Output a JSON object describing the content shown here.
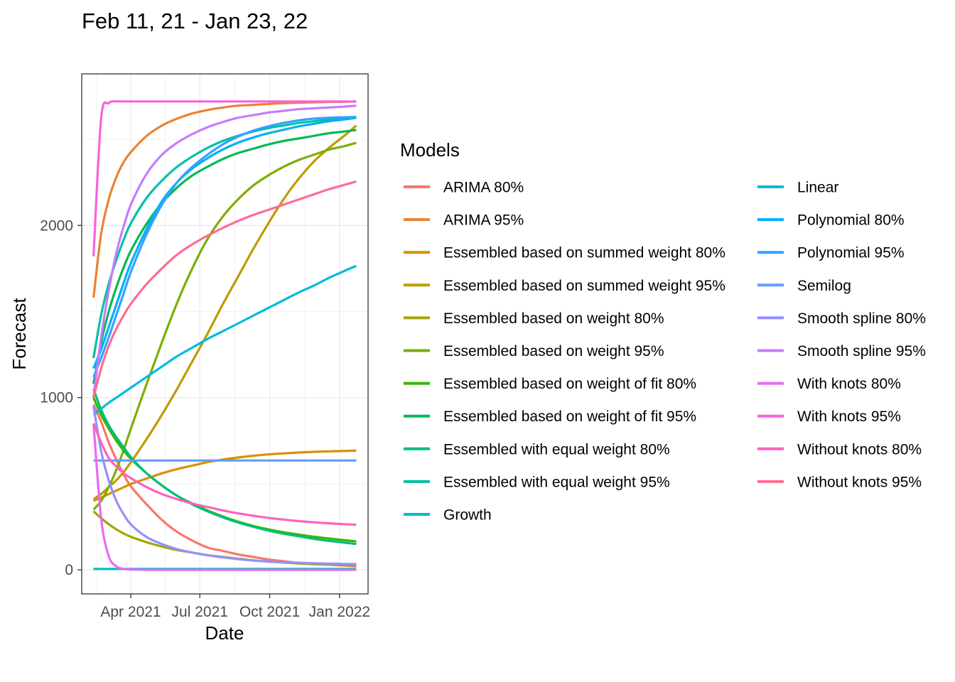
{
  "chart_data": {
    "type": "line",
    "title": "Feb 11, 21 - Jan 23, 22",
    "xlabel": "Date",
    "ylabel": "Forecast",
    "x_range": [
      "2021-02-11",
      "2022-01-23"
    ],
    "x_ticks": [
      {
        "date": "2021-04-01",
        "label": "Apr 2021"
      },
      {
        "date": "2021-07-01",
        "label": "Jul 2021"
      },
      {
        "date": "2021-10-01",
        "label": "Oct 2021"
      },
      {
        "date": "2022-01-01",
        "label": "Jan 2022"
      }
    ],
    "ylim": [
      -140,
      2880
    ],
    "y_ticks": [
      0,
      1000,
      2000
    ],
    "grid": true,
    "legend": {
      "title": "Models",
      "placement": "right"
    },
    "dates": [
      "2021-02-11",
      "2021-02-21",
      "2021-03-03",
      "2021-03-13",
      "2021-03-23",
      "2021-04-02",
      "2021-04-22",
      "2021-05-12",
      "2021-06-01",
      "2021-06-21",
      "2021-07-11",
      "2021-07-31",
      "2021-08-20",
      "2021-09-09",
      "2021-09-29",
      "2021-10-19",
      "2021-11-08",
      "2021-11-28",
      "2021-12-18",
      "2022-01-07",
      "2022-01-23"
    ],
    "series": [
      {
        "name": "ARIMA 80%",
        "color": "#F8766D",
        "values": [
          960,
          860,
          740,
          640,
          550,
          480,
          380,
          290,
          220,
          170,
          130,
          110,
          90,
          75,
          60,
          50,
          40,
          35,
          30,
          25,
          20
        ]
      },
      {
        "name": "ARIMA 95%",
        "color": "#EA8331",
        "values": [
          1580,
          1950,
          2150,
          2280,
          2370,
          2430,
          2520,
          2580,
          2620,
          2650,
          2670,
          2685,
          2695,
          2700,
          2705,
          2710,
          2713,
          2715,
          2717,
          2718,
          2720
        ]
      },
      {
        "name": "Essembled based on summed weight 80%",
        "color": "#D89000",
        "values": [
          400,
          420,
          440,
          460,
          480,
          500,
          530,
          560,
          585,
          605,
          625,
          640,
          652,
          662,
          670,
          676,
          681,
          685,
          688,
          690,
          692
        ]
      },
      {
        "name": "Essembled based on summed weight 95%",
        "color": "#C09B00",
        "values": [
          410,
          440,
          480,
          520,
          570,
          630,
          760,
          900,
          1050,
          1210,
          1370,
          1540,
          1700,
          1860,
          2010,
          2150,
          2270,
          2370,
          2450,
          2520,
          2580
        ]
      },
      {
        "name": "Essembled based on weight 80%",
        "color": "#A3A500",
        "values": [
          340,
          300,
          265,
          235,
          210,
          190,
          160,
          135,
          115,
          100,
          85,
          75,
          65,
          55,
          48,
          42,
          37,
          33,
          30,
          27,
          25
        ]
      },
      {
        "name": "Essembled based on weight 95%",
        "color": "#7CAE00",
        "values": [
          350,
          400,
          480,
          580,
          700,
          830,
          1080,
          1320,
          1550,
          1750,
          1920,
          2050,
          2150,
          2230,
          2290,
          2340,
          2380,
          2410,
          2440,
          2460,
          2480
        ]
      },
      {
        "name": "Essembled based on weight of fit 80%",
        "color": "#39B600",
        "values": [
          1000,
          900,
          820,
          750,
          690,
          640,
          560,
          490,
          430,
          385,
          345,
          310,
          280,
          255,
          235,
          218,
          205,
          192,
          182,
          172,
          165
        ]
      },
      {
        "name": "Essembled based on weight of fit 95%",
        "color": "#00BB4E",
        "values": [
          1080,
          1320,
          1500,
          1640,
          1760,
          1860,
          2010,
          2130,
          2220,
          2290,
          2340,
          2385,
          2420,
          2445,
          2470,
          2490,
          2505,
          2520,
          2535,
          2545,
          2555
        ]
      },
      {
        "name": "Essembled with equal weight 80%",
        "color": "#00BF7D",
        "values": [
          1050,
          930,
          840,
          770,
          710,
          650,
          560,
          490,
          430,
          380,
          340,
          305,
          275,
          250,
          228,
          210,
          195,
          180,
          168,
          158,
          150
        ]
      },
      {
        "name": "Essembled with equal weight 95%",
        "color": "#00C1A3",
        "values": [
          1230,
          1480,
          1660,
          1800,
          1920,
          2020,
          2160,
          2260,
          2340,
          2400,
          2450,
          2490,
          2520,
          2545,
          2565,
          2580,
          2595,
          2605,
          2615,
          2620,
          2625
        ]
      },
      {
        "name": "Growth",
        "color": "#00BFC4",
        "values": [
          5,
          5,
          5,
          5,
          5,
          5,
          5,
          5,
          5,
          5,
          5,
          5,
          5,
          5,
          5,
          5,
          5,
          5,
          5,
          5,
          5
        ]
      },
      {
        "name": "Linear",
        "color": "#00BAE0",
        "values": [
          900,
          935,
          970,
          1000,
          1030,
          1060,
          1120,
          1180,
          1240,
          1290,
          1340,
          1385,
          1430,
          1475,
          1520,
          1565,
          1610,
          1650,
          1695,
          1735,
          1765
        ]
      },
      {
        "name": "Polynomial 80%",
        "color": "#00B0F6",
        "values": [
          1170,
          1280,
          1410,
          1540,
          1670,
          1790,
          1980,
          2140,
          2250,
          2330,
          2390,
          2440,
          2480,
          2510,
          2535,
          2555,
          2575,
          2590,
          2605,
          2615,
          2625
        ]
      },
      {
        "name": "Polynomial 95%",
        "color": "#35A2FF",
        "values": [
          1120,
          1230,
          1350,
          1480,
          1610,
          1740,
          1950,
          2120,
          2250,
          2340,
          2410,
          2470,
          2515,
          2550,
          2575,
          2595,
          2610,
          2620,
          2625,
          2628,
          2630
        ]
      },
      {
        "name": "Semilog",
        "color": "#619CFF",
        "values": [
          635,
          635,
          635,
          635,
          635,
          635,
          635,
          635,
          635,
          635,
          635,
          635,
          635,
          635,
          635,
          635,
          635,
          635,
          635,
          635,
          635
        ]
      },
      {
        "name": "Smooth spline 80%",
        "color": "#9590FF",
        "values": [
          950,
          690,
          520,
          400,
          320,
          260,
          190,
          150,
          120,
          100,
          85,
          72,
          62,
          54,
          48,
          44,
          41,
          38,
          36,
          34,
          33
        ]
      },
      {
        "name": "Smooth spline 95%",
        "color": "#C77CFF",
        "values": [
          1000,
          1350,
          1620,
          1840,
          2000,
          2130,
          2300,
          2410,
          2480,
          2530,
          2570,
          2600,
          2625,
          2640,
          2655,
          2665,
          2675,
          2680,
          2685,
          2690,
          2695
        ]
      },
      {
        "name": "With knots 80%",
        "color": "#E76BF3",
        "values": [
          850,
          300,
          80,
          20,
          5,
          2,
          0,
          0,
          0,
          0,
          0,
          0,
          0,
          0,
          0,
          0,
          0,
          0,
          0,
          0,
          0
        ]
      },
      {
        "name": "With knots 95%",
        "color": "#FA62DB",
        "values": [
          1820,
          2620,
          2710,
          2720,
          2720,
          2720,
          2720,
          2720,
          2720,
          2720,
          2720,
          2720,
          2720,
          2720,
          2720,
          2720,
          2720,
          2720,
          2720,
          2720,
          2720
        ]
      },
      {
        "name": "Without knots 80%",
        "color": "#FF62BC",
        "values": [
          850,
          740,
          650,
          600,
          560,
          530,
          480,
          440,
          410,
          385,
          365,
          345,
          328,
          314,
          302,
          292,
          283,
          276,
          270,
          265,
          262
        ]
      },
      {
        "name": "Without knots 95%",
        "color": "#FF6C91",
        "values": [
          1000,
          1170,
          1300,
          1400,
          1480,
          1550,
          1660,
          1750,
          1830,
          1890,
          1940,
          1985,
          2025,
          2060,
          2090,
          2120,
          2150,
          2180,
          2210,
          2235,
          2255
        ]
      }
    ]
  }
}
